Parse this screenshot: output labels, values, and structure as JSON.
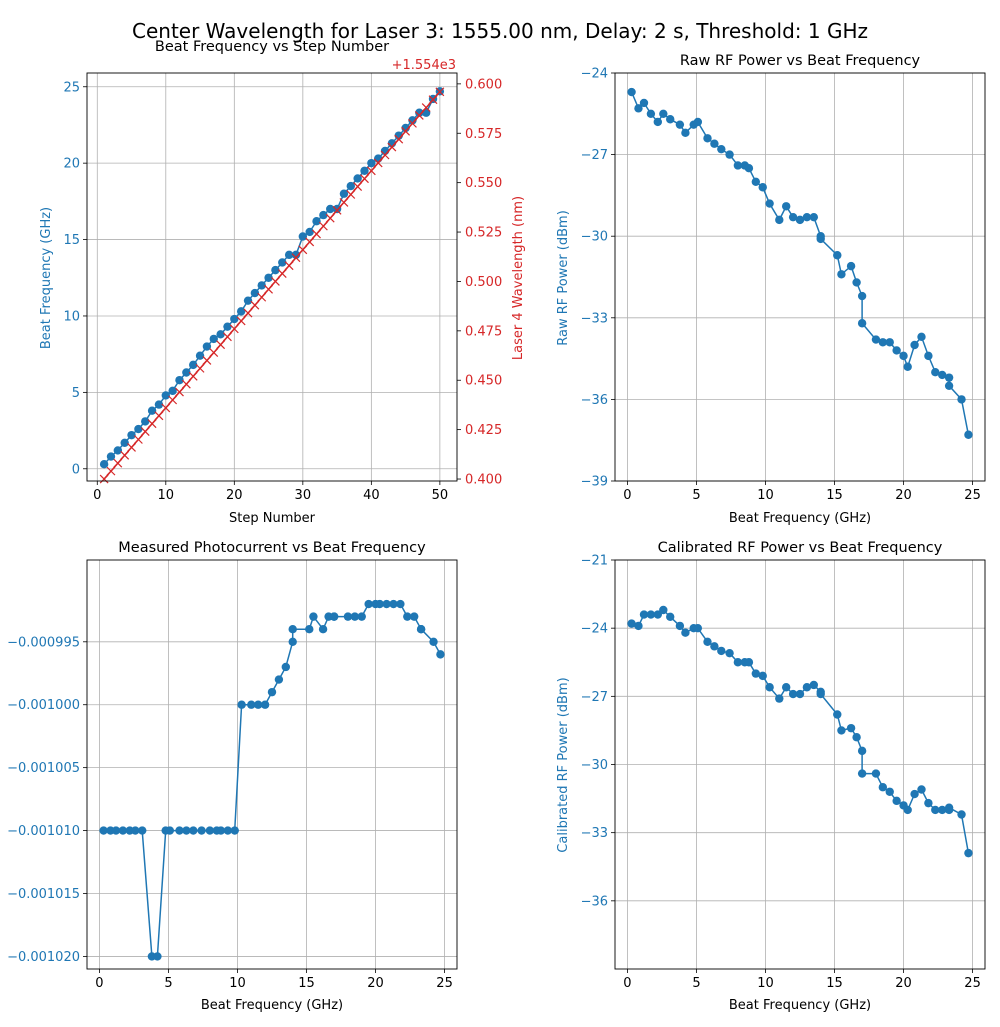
{
  "suptitle": "Center Wavelength for Laser 3: 1555.00 nm, Delay: 2 s, Threshold: 1 GHz",
  "colors": {
    "blue": "#1f77b4",
    "red": "#d62728",
    "grid": "#b0b0b0",
    "axis": "#000000"
  },
  "chart_data": [
    {
      "type": "line",
      "title": "Beat Frequency vs Step Number",
      "xlabel": "Step Number",
      "ylabel": "Beat Frequency (GHz)",
      "y2label": "Laser 4 Wavelength (nm)",
      "y2_offset_text": "+1.554e3",
      "xlim": [
        -1.5,
        52.5
      ],
      "ylim": [
        -0.8,
        25.9
      ],
      "y2lim": [
        0.399,
        0.6055
      ],
      "xticks": [
        0,
        10,
        20,
        30,
        40,
        50
      ],
      "yticks": [
        0,
        5,
        10,
        15,
        20,
        25
      ],
      "y2ticks": [
        0.4,
        0.425,
        0.45,
        0.475,
        0.5,
        0.525,
        0.55,
        0.575,
        0.6
      ],
      "y2ticklabels": [
        "0.400",
        "0.425",
        "0.450",
        "0.475",
        "0.500",
        "0.525",
        "0.550",
        "0.575",
        "0.600"
      ],
      "grid": true,
      "series": [
        {
          "axis": "left",
          "marker": "circle",
          "color": "#1f77b4",
          "x": [
            1,
            2,
            3,
            4,
            5,
            6,
            7,
            8,
            9,
            10,
            11,
            12,
            13,
            14,
            15,
            16,
            17,
            18,
            19,
            20,
            21,
            22,
            23,
            24,
            25,
            26,
            27,
            28,
            29,
            30,
            31,
            32,
            33,
            34,
            35,
            36,
            37,
            38,
            39,
            40,
            41,
            42,
            43,
            44,
            45,
            46,
            47,
            48,
            49,
            50
          ],
          "y": [
            0.3,
            0.8,
            1.2,
            1.7,
            2.2,
            2.6,
            3.1,
            3.8,
            4.2,
            4.8,
            5.1,
            5.8,
            6.3,
            6.8,
            7.4,
            8.0,
            8.5,
            8.8,
            9.3,
            9.8,
            10.3,
            11.0,
            11.5,
            12.0,
            12.5,
            13.0,
            13.5,
            14.0,
            14.0,
            15.2,
            15.5,
            16.2,
            16.6,
            17.0,
            17.0,
            18.0,
            18.5,
            19.0,
            19.5,
            20.0,
            20.3,
            20.8,
            21.3,
            21.8,
            22.3,
            22.8,
            23.3,
            23.3,
            24.2,
            24.7
          ]
        },
        {
          "axis": "right",
          "marker": "x",
          "color": "#d62728",
          "x": [
            1,
            2,
            3,
            4,
            5,
            6,
            7,
            8,
            9,
            10,
            11,
            12,
            13,
            14,
            15,
            16,
            17,
            18,
            19,
            20,
            21,
            22,
            23,
            24,
            25,
            26,
            27,
            28,
            29,
            30,
            31,
            32,
            33,
            34,
            35,
            36,
            37,
            38,
            39,
            40,
            41,
            42,
            43,
            44,
            45,
            46,
            47,
            48,
            49,
            50
          ],
          "y": [
            0.4,
            0.404,
            0.408,
            0.412,
            0.416,
            0.42,
            0.424,
            0.428,
            0.432,
            0.436,
            0.44,
            0.444,
            0.448,
            0.452,
            0.456,
            0.46,
            0.464,
            0.468,
            0.472,
            0.476,
            0.48,
            0.484,
            0.488,
            0.492,
            0.496,
            0.5,
            0.504,
            0.508,
            0.512,
            0.516,
            0.52,
            0.524,
            0.528,
            0.532,
            0.536,
            0.54,
            0.544,
            0.548,
            0.552,
            0.556,
            0.56,
            0.564,
            0.568,
            0.572,
            0.576,
            0.58,
            0.584,
            0.588,
            0.592,
            0.596
          ]
        }
      ]
    },
    {
      "type": "line",
      "title": "Raw RF Power vs Beat Frequency",
      "xlabel": "Beat Frequency (GHz)",
      "ylabel": "Raw RF Power (dBm)",
      "xlim": [
        -0.9,
        25.9
      ],
      "ylim": [
        -39,
        -24
      ],
      "xticks": [
        0,
        5,
        10,
        15,
        20,
        25
      ],
      "yticks": [
        -39,
        -36,
        -33,
        -30,
        -27,
        -24
      ],
      "yticklabels": [
        "−39",
        "−36",
        "−33",
        "−30",
        "−27",
        "−24"
      ],
      "grid": true,
      "series": [
        {
          "marker": "circle",
          "color": "#1f77b4",
          "x": [
            0.3,
            0.8,
            1.2,
            1.7,
            2.2,
            2.6,
            3.1,
            3.8,
            4.2,
            4.8,
            5.1,
            5.8,
            6.3,
            6.8,
            7.4,
            8.0,
            8.5,
            8.8,
            9.3,
            9.8,
            10.3,
            11.0,
            11.5,
            12.0,
            12.5,
            13.0,
            13.5,
            14.0,
            14.0,
            15.2,
            15.5,
            16.2,
            16.6,
            17.0,
            17.0,
            18.0,
            18.5,
            19.0,
            19.5,
            20.0,
            20.3,
            20.8,
            21.3,
            21.8,
            22.3,
            22.8,
            23.3,
            23.3,
            24.2,
            24.7
          ],
          "y": [
            -24.7,
            -25.3,
            -25.1,
            -25.5,
            -25.8,
            -25.5,
            -25.7,
            -25.9,
            -26.2,
            -25.9,
            -25.8,
            -26.4,
            -26.6,
            -26.8,
            -27.0,
            -27.4,
            -27.4,
            -27.5,
            -28.0,
            -28.2,
            -28.8,
            -29.4,
            -28.9,
            -29.3,
            -29.4,
            -29.3,
            -29.3,
            -30.0,
            -30.1,
            -30.7,
            -31.4,
            -31.1,
            -31.7,
            -32.2,
            -33.2,
            -33.8,
            -33.9,
            -33.9,
            -34.2,
            -34.4,
            -34.8,
            -34.0,
            -33.7,
            -34.4,
            -35.0,
            -35.1,
            -35.2,
            -35.5,
            -36.0,
            -37.3
          ]
        }
      ]
    },
    {
      "type": "line",
      "title": "Measured Photocurrent vs Beat Frequency",
      "xlabel": "Beat Frequency (GHz)",
      "ylabel": "",
      "xlim": [
        -0.9,
        25.9
      ],
      "ylim": [
        -0.001021,
        -0.0009885
      ],
      "xticks": [
        0,
        5,
        10,
        15,
        20,
        25
      ],
      "yticks": [
        -0.00102,
        -0.001015,
        -0.00101,
        -0.001005,
        -0.001,
        -0.000995
      ],
      "yticklabels": [
        "−0.001020",
        "−0.001015",
        "−0.001010",
        "−0.001005",
        "−0.001000",
        "−0.000995"
      ],
      "grid": true,
      "series": [
        {
          "marker": "circle",
          "color": "#1f77b4",
          "x": [
            0.3,
            0.8,
            1.2,
            1.7,
            2.2,
            2.6,
            3.1,
            3.8,
            4.2,
            4.8,
            5.1,
            5.8,
            6.3,
            6.8,
            7.4,
            8.0,
            8.5,
            8.8,
            9.3,
            9.8,
            10.3,
            11.0,
            11.5,
            12.0,
            12.5,
            13.0,
            13.5,
            14.0,
            14.0,
            15.2,
            15.5,
            16.2,
            16.6,
            17.0,
            17.0,
            18.0,
            18.5,
            19.0,
            19.5,
            20.0,
            20.3,
            20.8,
            21.3,
            21.8,
            22.3,
            22.8,
            23.3,
            23.3,
            24.2,
            24.7
          ],
          "y": [
            -0.00101,
            -0.00101,
            -0.00101,
            -0.00101,
            -0.00101,
            -0.00101,
            -0.00101,
            -0.00102,
            -0.00102,
            -0.00101,
            -0.00101,
            -0.00101,
            -0.00101,
            -0.00101,
            -0.00101,
            -0.00101,
            -0.00101,
            -0.00101,
            -0.00101,
            -0.00101,
            -0.001,
            -0.001,
            -0.001,
            -0.001,
            -0.000999,
            -0.000998,
            -0.000997,
            -0.000995,
            -0.000994,
            -0.000994,
            -0.000993,
            -0.000994,
            -0.000993,
            -0.000993,
            -0.000993,
            -0.000993,
            -0.000993,
            -0.000993,
            -0.000992,
            -0.000992,
            -0.000992,
            -0.000992,
            -0.000992,
            -0.000992,
            -0.000993,
            -0.000993,
            -0.000994,
            -0.000994,
            -0.000995,
            -0.000996
          ]
        }
      ]
    },
    {
      "type": "line",
      "title": "Calibrated RF Power vs Beat Frequency",
      "xlabel": "Beat Frequency (GHz)",
      "ylabel": "Calibrated RF Power (dBm)",
      "xlim": [
        -0.9,
        25.9
      ],
      "ylim": [
        -39,
        -21
      ],
      "xticks": [
        0,
        5,
        10,
        15,
        20,
        25
      ],
      "yticks": [
        -36,
        -33,
        -30,
        -27,
        -24,
        -21
      ],
      "yticklabels": [
        "−36",
        "−33",
        "−30",
        "−27",
        "−24",
        "−21"
      ],
      "grid": true,
      "series": [
        {
          "marker": "circle",
          "color": "#1f77b4",
          "x": [
            0.3,
            0.8,
            1.2,
            1.7,
            2.2,
            2.6,
            3.1,
            3.8,
            4.2,
            4.8,
            5.1,
            5.8,
            6.3,
            6.8,
            7.4,
            8.0,
            8.5,
            8.8,
            9.3,
            9.8,
            10.3,
            11.0,
            11.5,
            12.0,
            12.5,
            13.0,
            13.5,
            14.0,
            14.0,
            15.2,
            15.5,
            16.2,
            16.6,
            17.0,
            17.0,
            18.0,
            18.5,
            19.0,
            19.5,
            20.0,
            20.3,
            20.8,
            21.3,
            21.8,
            22.3,
            22.8,
            23.3,
            23.3,
            24.2,
            24.7
          ],
          "y": [
            -23.8,
            -23.9,
            -23.4,
            -23.4,
            -23.4,
            -23.2,
            -23.5,
            -23.9,
            -24.2,
            -24.0,
            -24.0,
            -24.6,
            -24.8,
            -25.0,
            -25.1,
            -25.5,
            -25.5,
            -25.5,
            -26.0,
            -26.1,
            -26.6,
            -27.1,
            -26.6,
            -26.9,
            -26.9,
            -26.6,
            -26.5,
            -26.8,
            -26.9,
            -27.8,
            -28.5,
            -28.4,
            -28.8,
            -29.4,
            -30.4,
            -30.4,
            -31.0,
            -31.2,
            -31.6,
            -31.8,
            -32.0,
            -31.3,
            -31.1,
            -31.7,
            -32.0,
            -32.0,
            -32.0,
            -31.9,
            -32.2,
            -33.9
          ]
        }
      ]
    }
  ]
}
